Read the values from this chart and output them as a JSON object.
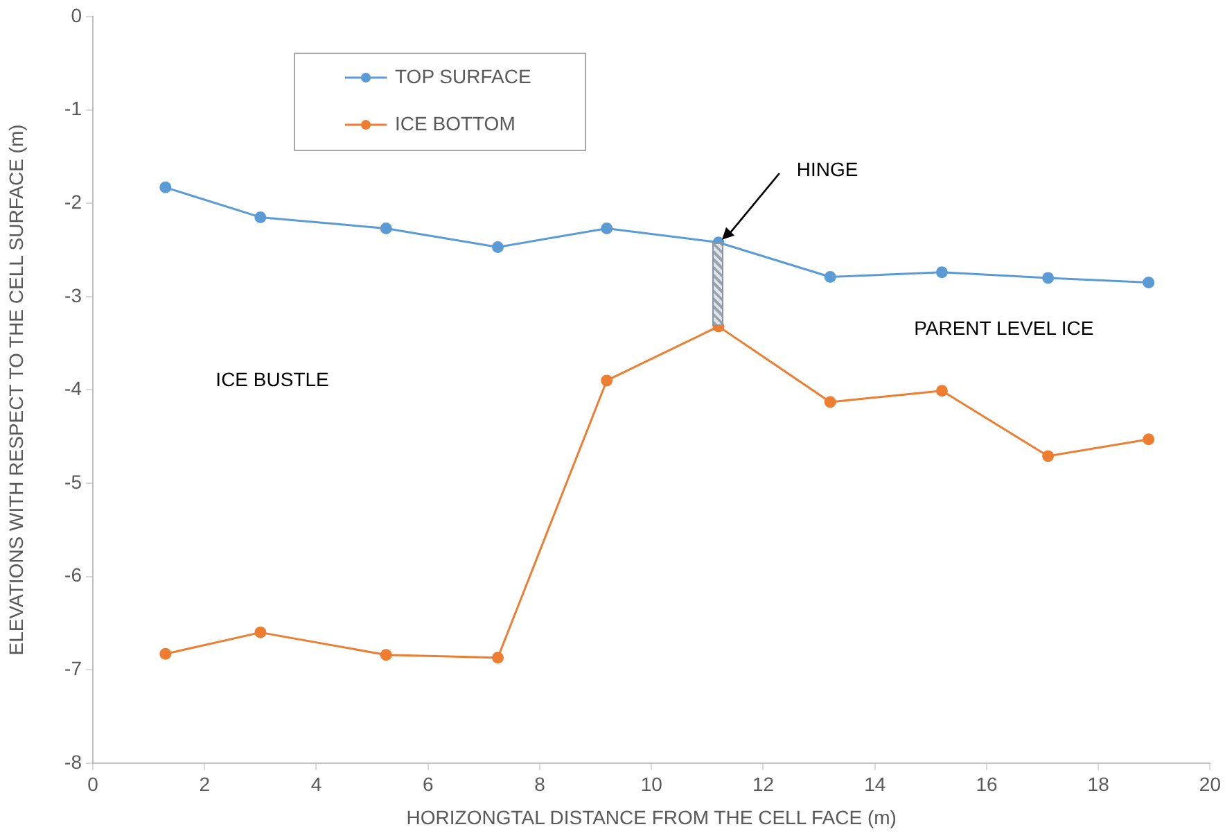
{
  "chart_data": {
    "type": "line",
    "xlabel": "HORIZONGTAL DISTANCE FROM THE CELL FACE (m)",
    "ylabel": "ELEVATIONS WITH RESPECT TO THE CELL SURFACE (m)",
    "x": [
      1.3,
      3.0,
      5.25,
      7.25,
      9.2,
      11.2,
      13.2,
      15.2,
      17.1,
      18.9
    ],
    "series": [
      {
        "name": "TOP SURFACE",
        "color": "#5b9bd5",
        "values": [
          -1.83,
          -2.15,
          -2.27,
          -2.47,
          -2.27,
          -2.42,
          -2.79,
          -2.74,
          -2.8,
          -2.85
        ]
      },
      {
        "name": "ICE BOTTOM",
        "color": "#ed7d31",
        "values": [
          -6.83,
          -6.6,
          -6.84,
          -6.87,
          -3.9,
          -3.32,
          -4.13,
          -4.01,
          -4.71,
          -4.53
        ]
      }
    ],
    "xlim": [
      0,
      20
    ],
    "xticks": [
      0,
      2,
      4,
      6,
      8,
      10,
      12,
      14,
      16,
      18,
      20
    ],
    "ylim": [
      -8,
      0
    ],
    "yticks": [
      -8,
      -7,
      -6,
      -5,
      -4,
      -3,
      -2,
      -1,
      0
    ],
    "annotations": [
      "HINGE",
      "ICE BUSTLE",
      "PARENT LEVEL ICE"
    ],
    "grid": false,
    "legend": "top left",
    "marker": "circle",
    "line_style": "solid"
  }
}
